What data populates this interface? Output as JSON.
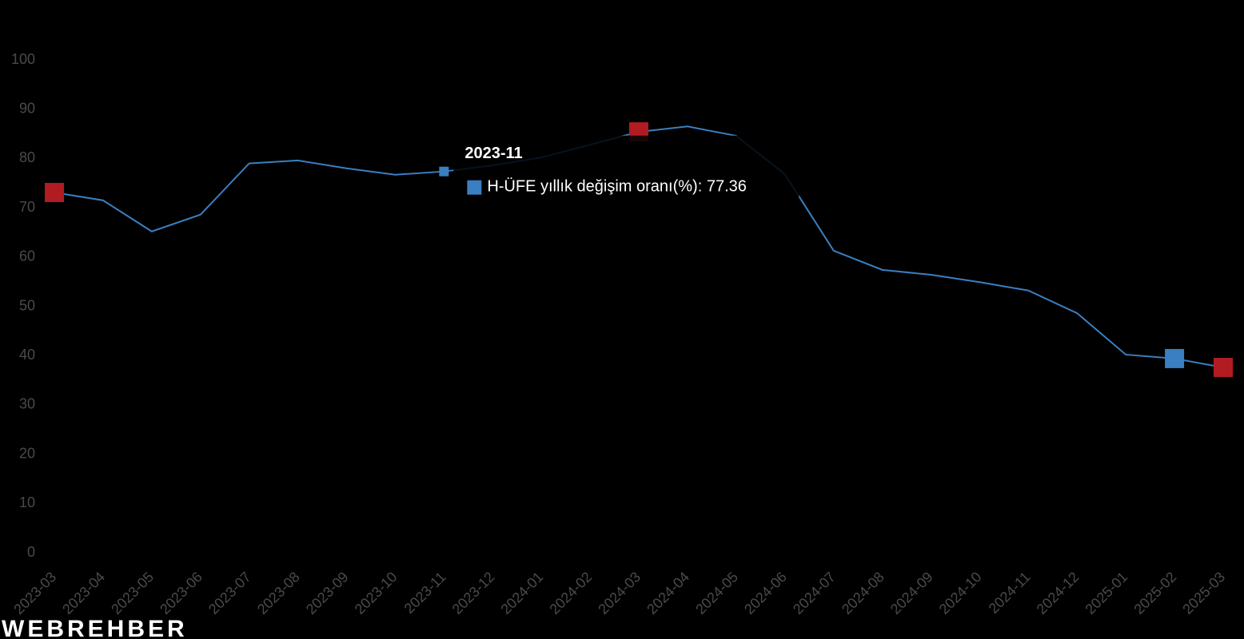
{
  "chart_data": {
    "type": "line",
    "categories": [
      "2023-03",
      "2023-04",
      "2023-05",
      "2023-06",
      "2023-07",
      "2023-08",
      "2023-09",
      "2023-10",
      "2023-11",
      "2023-12",
      "2024-01",
      "2024-02",
      "2024-03",
      "2024-04",
      "2024-05",
      "2024-06",
      "2024-07",
      "2024-08",
      "2024-09",
      "2024-10",
      "2024-11",
      "2024-12",
      "2025-01",
      "2025-02",
      "2025-03"
    ],
    "series": [
      {
        "name": "H-ÜFE yıllık değişim oranı(%)",
        "color": "#3a7fc1",
        "values": [
          73.1,
          71.5,
          65.2,
          68.6,
          79.0,
          79.6,
          78.0,
          76.7,
          77.36,
          78.6,
          80.2,
          82.8,
          85.4,
          86.5,
          84.6,
          76.8,
          61.3,
          57.4,
          56.4,
          54.9,
          53.2,
          48.6,
          40.2,
          39.4,
          37.6
        ]
      }
    ],
    "ylim": [
      0,
      100
    ],
    "yticks": [
      0,
      10,
      20,
      30,
      40,
      50,
      60,
      70,
      80,
      90,
      100
    ],
    "highlight_points": [
      {
        "index": 0,
        "color": "#b01c22"
      },
      {
        "index": 12,
        "color": "#b01c22"
      },
      {
        "index": 24,
        "color": "#b01c22"
      },
      {
        "index": 23,
        "color": "#3a7fc1"
      }
    ],
    "tooltip_index": 8
  },
  "watermark": "WEBREHBER"
}
